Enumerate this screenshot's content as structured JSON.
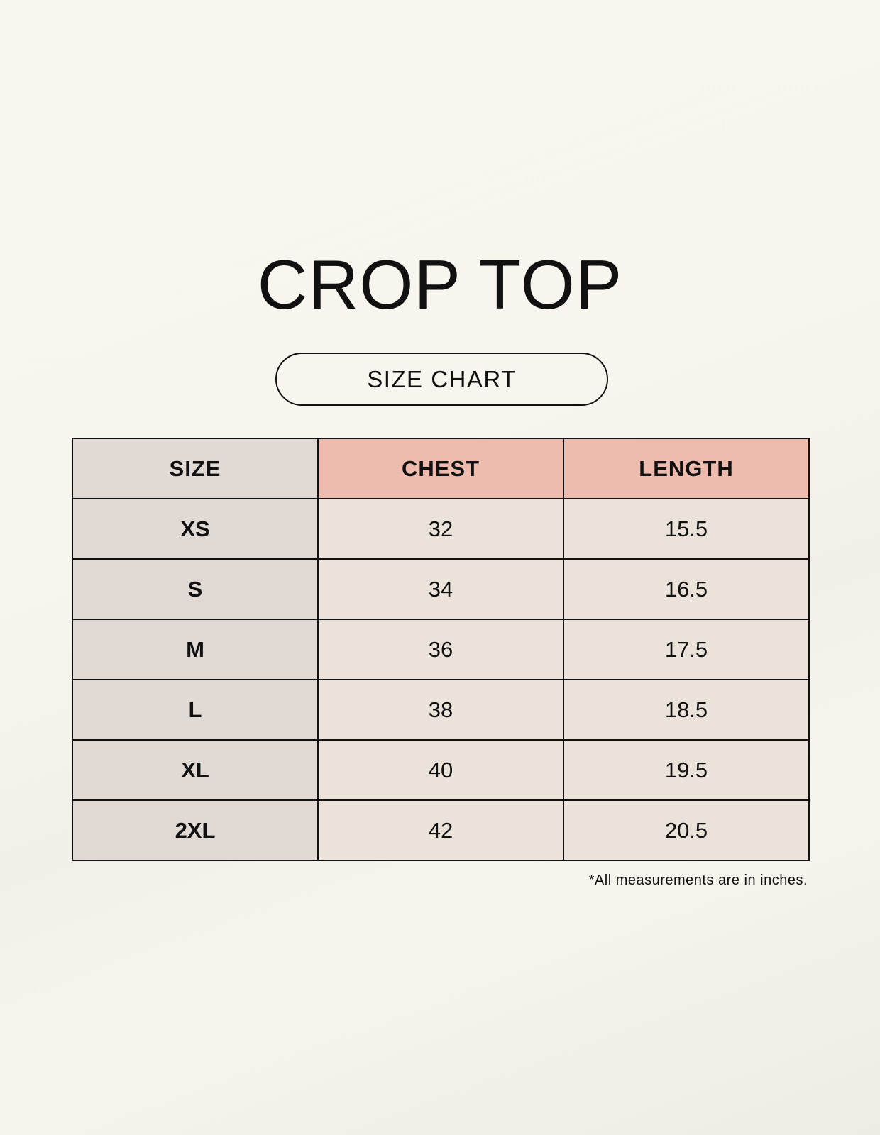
{
  "title": "CROP TOP",
  "subtitle": "SIZE CHART",
  "table": {
    "headers": [
      "SIZE",
      "CHEST",
      "LENGTH"
    ],
    "rows": [
      [
        "XS",
        "32",
        "15.5"
      ],
      [
        "S",
        "34",
        "16.5"
      ],
      [
        "M",
        "36",
        "17.5"
      ],
      [
        "L",
        "38",
        "18.5"
      ],
      [
        "XL",
        "40",
        "19.5"
      ],
      [
        "2XL",
        "42",
        "20.5"
      ]
    ]
  },
  "footnote": "*All measurements are in inches.",
  "colors": {
    "size_column": "#e0d9d4",
    "header_highlight": "#eebcaf",
    "cell": "#ebe3d9"
  }
}
